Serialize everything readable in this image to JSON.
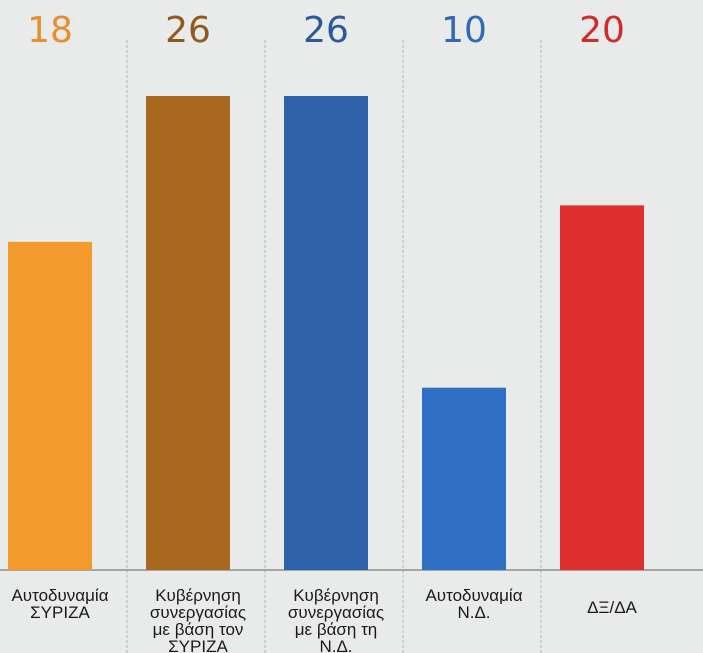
{
  "chart_data": {
    "type": "bar",
    "title": "",
    "xlabel": "",
    "ylabel": "",
    "ylim": [
      0,
      27
    ],
    "grid": false,
    "categories": [
      [
        "Αυτοδυναμία",
        "ΣΥΡΙΖΑ"
      ],
      [
        "Κυβέρνηση",
        "συνεργασίας",
        "με βάση τον",
        "ΣΥΡΙΖΑ"
      ],
      [
        "Κυβέρνηση",
        "συνεργασίας",
        "με βάση τη",
        "Ν.Δ."
      ],
      [
        "Αυτοδυναμία",
        "Ν.Δ."
      ],
      [
        "ΔΞ/ΔΑ"
      ]
    ],
    "values": [
      18,
      26,
      26,
      10,
      20
    ],
    "value_labels": [
      "18",
      "26",
      "26",
      "10",
      "20"
    ],
    "colors": [
      "#f39a2c",
      "#a8691e",
      "#2d62a8",
      "#2f6fc4",
      "#de2e2e"
    ],
    "label_colors": [
      "#e88e2a",
      "#8f5a1c",
      "#2b5a9c",
      "#2f6ab8",
      "#d42a2a"
    ]
  }
}
